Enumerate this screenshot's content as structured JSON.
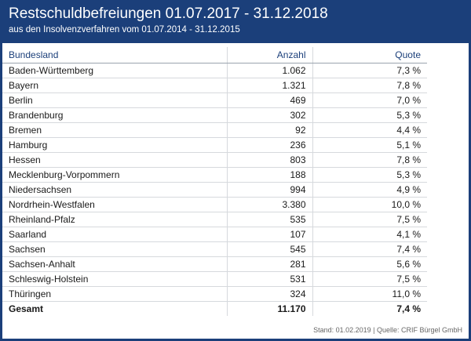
{
  "header": {
    "title": "Restschuldbefreiungen 01.07.2017 - 31.12.2018",
    "subtitle": "aus den Insolvenzverfahren vom 01.07.2014 - 31.12.2015"
  },
  "chart_data": {
    "type": "table",
    "columns": [
      "Bundesland",
      "Anzahl",
      "Quote"
    ],
    "rows": [
      [
        "Baden-Württemberg",
        "1.062",
        "7,3 %"
      ],
      [
        "Bayern",
        "1.321",
        "7,8 %"
      ],
      [
        "Berlin",
        "469",
        "7,0 %"
      ],
      [
        "Brandenburg",
        "302",
        "5,3 %"
      ],
      [
        "Bremen",
        "92",
        "4,4 %"
      ],
      [
        "Hamburg",
        "236",
        "5,1 %"
      ],
      [
        "Hessen",
        "803",
        "7,8 %"
      ],
      [
        "Mecklenburg-Vorpommern",
        "188",
        "5,3 %"
      ],
      [
        "Niedersachsen",
        "994",
        "4,9 %"
      ],
      [
        "Nordrhein-Westfalen",
        "3.380",
        "10,0 %"
      ],
      [
        "Rheinland-Pfalz",
        "535",
        "7,5 %"
      ],
      [
        "Saarland",
        "107",
        "4,1 %"
      ],
      [
        "Sachsen",
        "545",
        "7,4 %"
      ],
      [
        "Sachsen-Anhalt",
        "281",
        "5,6 %"
      ],
      [
        "Schleswig-Holstein",
        "531",
        "7,5 %"
      ],
      [
        "Thüringen",
        "324",
        "11,0 %"
      ]
    ],
    "total": [
      "Gesamt",
      "11.170",
      "7,4 %"
    ]
  },
  "footer": {
    "source": "Stand: 01.02.2019 | Quelle: CRIF Bürgel GmbH"
  },
  "colors": {
    "brand": "#1b3f7a",
    "card": "#ffffff",
    "text": "#1a1a1a",
    "rule": "#d6d9dd"
  }
}
